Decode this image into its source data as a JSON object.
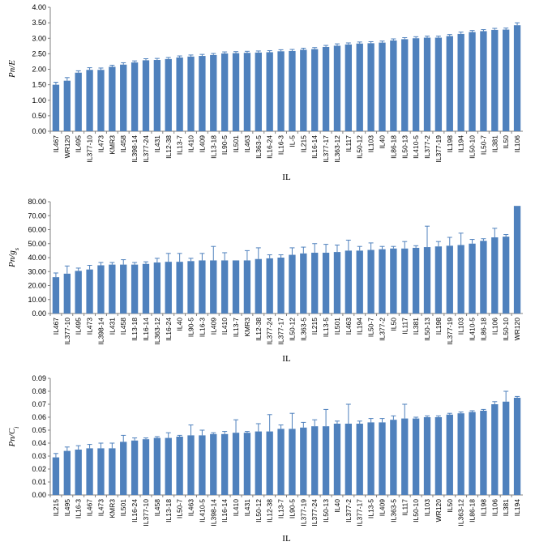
{
  "colors": {
    "bar": "#4f81bd",
    "axis": "#808080",
    "text": "#000000"
  },
  "chart_data": [
    {
      "type": "bar",
      "ylabel": "Pn/E",
      "xlabel": "IL",
      "ylim": [
        0,
        4
      ],
      "yticks": [
        "0.00",
        "0.50",
        "1.00",
        "1.50",
        "2.00",
        "2.50",
        "3.00",
        "3.50",
        "4.00"
      ],
      "categories": [
        "IL467",
        "WR120",
        "IL495",
        "IL377-10",
        "IL473",
        "KMR3",
        "IL458",
        "IL398-14",
        "IL377-24",
        "IL431",
        "IL12-38",
        "IL13-7",
        "IL410",
        "IL409",
        "IL13-18",
        "IL90-5",
        "IL501",
        "IL463",
        "IL363-5",
        "IL16-24",
        "IL16-3",
        "IL-5",
        "IL215",
        "IL16-14",
        "IL377-17",
        "IL363-12",
        "IL117",
        "IL50-12",
        "IL103",
        "IL40",
        "IL86-18",
        "IL50-13",
        "IL410-5",
        "IL377-2",
        "IL377-19",
        "IL198",
        "IL194",
        "IL50-10",
        "IL50-7",
        "IL381",
        "IL50",
        "IL106"
      ],
      "values": [
        1.5,
        1.63,
        1.89,
        1.98,
        1.98,
        2.08,
        2.15,
        2.22,
        2.29,
        2.3,
        2.33,
        2.38,
        2.41,
        2.43,
        2.46,
        2.51,
        2.52,
        2.53,
        2.54,
        2.55,
        2.58,
        2.59,
        2.63,
        2.65,
        2.72,
        2.76,
        2.8,
        2.83,
        2.84,
        2.86,
        2.93,
        2.97,
        3.0,
        3.02,
        3.02,
        3.07,
        3.14,
        3.2,
        3.23,
        3.27,
        3.28,
        3.42
      ],
      "errors": [
        0.08,
        0.1,
        0.06,
        0.07,
        0.06,
        0.05,
        0.06,
        0.05,
        0.05,
        0.05,
        0.05,
        0.05,
        0.05,
        0.05,
        0.05,
        0.05,
        0.05,
        0.05,
        0.05,
        0.05,
        0.05,
        0.05,
        0.05,
        0.05,
        0.05,
        0.06,
        0.05,
        0.05,
        0.05,
        0.05,
        0.05,
        0.05,
        0.05,
        0.05,
        0.05,
        0.05,
        0.06,
        0.05,
        0.05,
        0.05,
        0.05,
        0.08
      ]
    },
    {
      "type": "bar",
      "ylabel": "Pn/gs",
      "xlabel": "IL",
      "ylim": [
        0,
        80
      ],
      "yticks": [
        "0.00",
        "10.00",
        "20.00",
        "30.00",
        "40.00",
        "50.00",
        "60.00",
        "70.00",
        "80.00"
      ],
      "categories": [
        "IL467",
        "IL377-10",
        "IL495",
        "IL473",
        "IL398-14",
        "IL431",
        "IL458",
        "IL13-18",
        "IL16-14",
        "IL363-12",
        "IL16-24",
        "IL40",
        "IL90-5",
        "IL16-3",
        "IL409",
        "IL410",
        "IL13-7",
        "KMR3",
        "IL12-38",
        "IL377-24",
        "IL377-17",
        "IL50-12",
        "IL363-5",
        "IL215",
        "IL13-5",
        "IL501",
        "IL463",
        "IL194",
        "IL50-7",
        "IL377-2",
        "IL50",
        "IL117",
        "IL381",
        "IL50-13",
        "IL198",
        "IL377-19",
        "IL103",
        "IL410-5",
        "IL86-18",
        "IL106",
        "IL50-10",
        "WR120"
      ],
      "values": [
        26.0,
        28.5,
        30.5,
        31.5,
        34.5,
        35.0,
        35.0,
        35.0,
        35.5,
        36.5,
        37.0,
        37.0,
        37.5,
        38.0,
        38.0,
        38.0,
        38.0,
        38.0,
        39.0,
        39.5,
        40.0,
        42.0,
        43.0,
        43.5,
        43.5,
        44.0,
        45.0,
        45.0,
        45.5,
        46.0,
        46.5,
        46.5,
        47.0,
        47.5,
        48.0,
        48.5,
        49.0,
        50.0,
        52.0,
        54.5,
        55.0,
        77.0
      ],
      "errors": [
        3.0,
        5.5,
        2.0,
        3.0,
        2.0,
        1.5,
        3.5,
        1.5,
        1.5,
        3.0,
        6.0,
        6.0,
        2.0,
        5.0,
        10.0,
        5.5,
        0,
        7.0,
        8.0,
        2.5,
        2.0,
        5.0,
        4.5,
        6.5,
        6.0,
        5.0,
        7.5,
        3.0,
        5.0,
        2.0,
        1.5,
        5.0,
        1.5,
        15.0,
        3.5,
        6.0,
        8.5,
        3.0,
        1.5,
        6.5,
        1.5,
        0
      ]
    },
    {
      "type": "bar",
      "ylabel": "Pn/Ci",
      "xlabel": "IL",
      "ylim": [
        0,
        0.09
      ],
      "yticks": [
        "0.00",
        "0.01",
        "0.02",
        "0.03",
        "0.04",
        "0.05",
        "0.06",
        "0.07",
        "0.08",
        "0.09"
      ],
      "categories": [
        "IL215",
        "IL495",
        "IL16-3",
        "IL467",
        "IL473",
        "KMR3",
        "IL501",
        "IL16-24",
        "IL377-10",
        "IL458",
        "IL13-18",
        "IL50-7",
        "IL463",
        "IL410-5",
        "IL398-14",
        "IL16-14",
        "IL410",
        "IL431",
        "IL50-12",
        "IL12-38",
        "IL13-7",
        "IL90-5",
        "IL377-19",
        "IL377-24",
        "IL50-13",
        "IL40",
        "IL377-2",
        "IL377-17",
        "IL13-5",
        "IL409",
        "IL363-5",
        "IL117",
        "IL50-10",
        "IL103",
        "WR120",
        "IL50",
        "IL363-12",
        "IL86-18",
        "IL198",
        "IL106",
        "IL381",
        "IL194"
      ],
      "values": [
        0.029,
        0.034,
        0.035,
        0.036,
        0.036,
        0.036,
        0.041,
        0.042,
        0.043,
        0.044,
        0.044,
        0.045,
        0.046,
        0.046,
        0.047,
        0.047,
        0.048,
        0.048,
        0.049,
        0.049,
        0.051,
        0.051,
        0.052,
        0.053,
        0.053,
        0.055,
        0.055,
        0.055,
        0.056,
        0.056,
        0.058,
        0.059,
        0.059,
        0.06,
        0.06,
        0.062,
        0.063,
        0.064,
        0.065,
        0.07,
        0.072,
        0.075
      ],
      "errors": [
        0.003,
        0.003,
        0.003,
        0.003,
        0.004,
        0.004,
        0.005,
        0.002,
        0.001,
        0.001,
        0.004,
        0.001,
        0.008,
        0.004,
        0.001,
        0.002,
        0.01,
        0.001,
        0.006,
        0.013,
        0.003,
        0.012,
        0.004,
        0.005,
        0.013,
        0.002,
        0.015,
        0.002,
        0.003,
        0.003,
        0.003,
        0.011,
        0.001,
        0.001,
        0.001,
        0.001,
        0.001,
        0.001,
        0.001,
        0.002,
        0.008,
        0.001
      ]
    }
  ]
}
